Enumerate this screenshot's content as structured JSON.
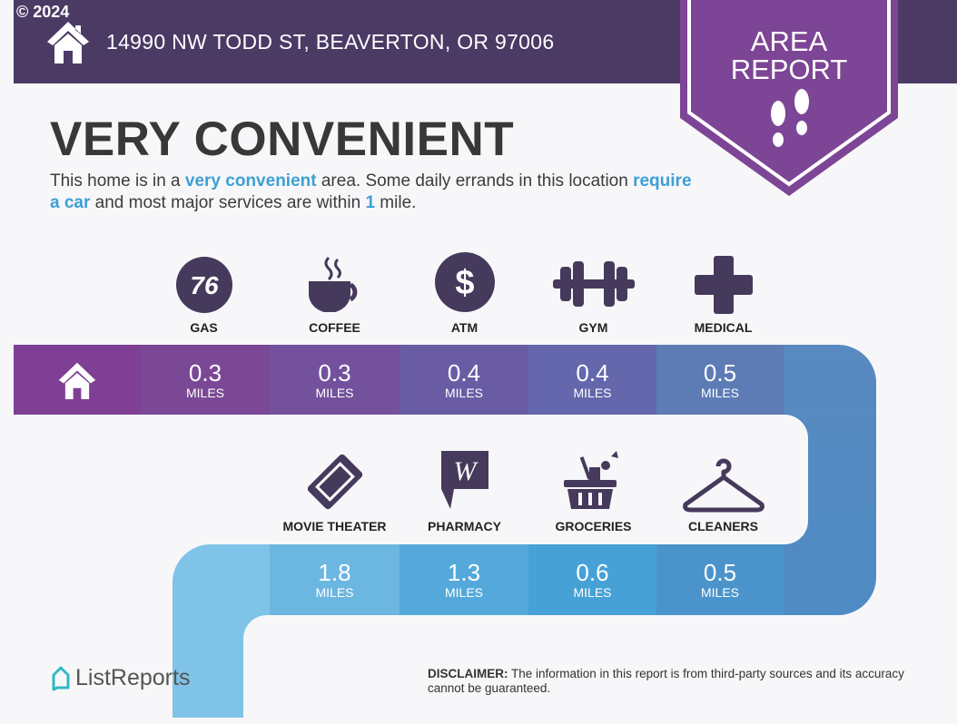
{
  "copyright": "© 2024",
  "address": "14990 NW TODD ST, BEAVERTON, OR 97006",
  "badge": {
    "line1": "AREA",
    "line2": "REPORT"
  },
  "title": "VERY CONVENIENT",
  "description": {
    "p1": "This home is in a ",
    "h1": "very convenient",
    "p2": " area. Some daily errands in this location ",
    "h2": "require a car",
    "p3": " and most major services are within ",
    "h3": "1",
    "p4": " mile."
  },
  "unit": "MILES",
  "row1": [
    {
      "label": "GAS",
      "value": "0.3",
      "icon": "gas-76-icon"
    },
    {
      "label": "COFFEE",
      "value": "0.3",
      "icon": "coffee-cup-icon"
    },
    {
      "label": "ATM",
      "value": "0.4",
      "icon": "dollar-icon"
    },
    {
      "label": "GYM",
      "value": "0.4",
      "icon": "dumbbell-icon"
    },
    {
      "label": "MEDICAL",
      "value": "0.5",
      "icon": "medical-cross-icon"
    }
  ],
  "row2": [
    {
      "label": "MOVIE THEATER",
      "value": "1.8",
      "icon": "ticket-icon"
    },
    {
      "label": "PHARMACY",
      "value": "1.3",
      "icon": "walgreens-icon"
    },
    {
      "label": "GROCERIES",
      "value": "0.6",
      "icon": "basket-icon"
    },
    {
      "label": "CLEANERS",
      "value": "0.5",
      "icon": "hanger-icon"
    }
  ],
  "logo": "ListReports",
  "disclaimer": {
    "bold": "DISCLAIMER:",
    "text": " The information in this report is from third-party sources and its accuracy cannot be guaranteed."
  },
  "colors": {
    "header": "#4a3a64",
    "badge": "#7d4595",
    "accent": "#3d9fd6",
    "icon": "#463a5c"
  }
}
